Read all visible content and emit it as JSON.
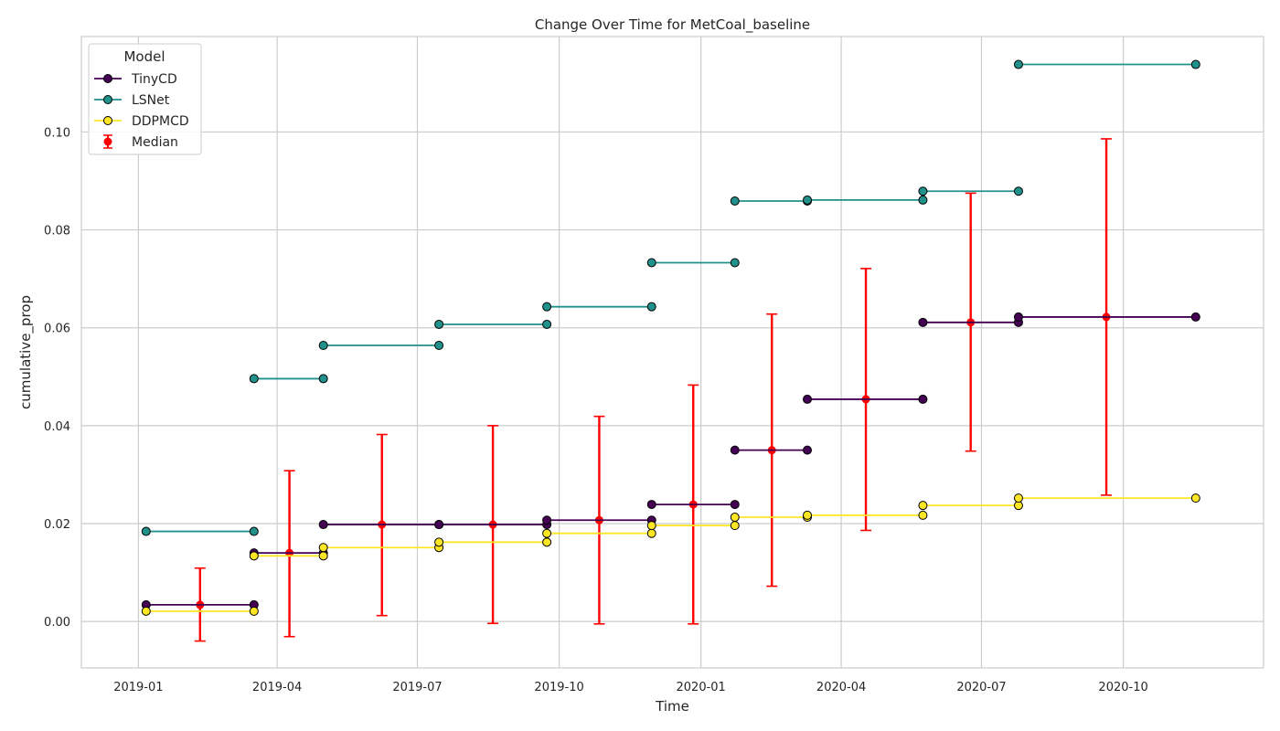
{
  "chart_data": {
    "type": "line",
    "title": "Change Over Time for MetCoal_baseline",
    "xlabel": "Time",
    "ylabel": "cumulative_prop",
    "xlim": [
      "2018-11-25",
      "2020-12-31"
    ],
    "ylim": [
      -0.0095,
      0.1195
    ],
    "x_ticks": [
      "2019-01-01",
      "2019-04-01",
      "2019-07-01",
      "2019-10-01",
      "2020-01-01",
      "2020-04-01",
      "2020-07-01",
      "2020-10-01"
    ],
    "x_tick_labels": [
      "2019-01",
      "2019-04",
      "2019-07",
      "2019-10",
      "2020-01",
      "2020-04",
      "2020-07",
      "2020-10"
    ],
    "y_ticks": [
      0.0,
      0.02,
      0.04,
      0.06,
      0.08,
      0.1
    ],
    "y_tick_labels": [
      "0.00",
      "0.02",
      "0.04",
      "0.06",
      "0.08",
      "0.10"
    ],
    "grid": true,
    "legend": {
      "title": "Model",
      "placement": "top-left"
    },
    "series": [
      {
        "name": "TinyCD",
        "color": "#440154",
        "segments": [
          [
            [
              "2019-01-06",
              0.0034
            ],
            [
              "2019-03-17",
              0.0034
            ]
          ],
          [
            [
              "2019-03-17",
              0.014
            ],
            [
              "2019-05-01",
              0.014
            ]
          ],
          [
            [
              "2019-05-01",
              0.0198
            ],
            [
              "2019-07-15",
              0.0198
            ]
          ],
          [
            [
              "2019-07-15",
              0.0198
            ],
            [
              "2019-09-23",
              0.0198
            ]
          ],
          [
            [
              "2019-09-23",
              0.0207
            ],
            [
              "2019-11-30",
              0.0207
            ]
          ],
          [
            [
              "2019-11-30",
              0.0239
            ],
            [
              "2020-01-23",
              0.0239
            ]
          ],
          [
            [
              "2020-01-23",
              0.035
            ],
            [
              "2020-03-10",
              0.035
            ]
          ],
          [
            [
              "2020-03-10",
              0.0454
            ],
            [
              "2020-05-24",
              0.0454
            ]
          ],
          [
            [
              "2020-05-24",
              0.0611
            ],
            [
              "2020-07-25",
              0.0611
            ]
          ],
          [
            [
              "2020-07-25",
              0.0622
            ],
            [
              "2020-11-17",
              0.0622
            ]
          ]
        ]
      },
      {
        "name": "LSNet",
        "color": "#21918c",
        "segments": [
          [
            [
              "2019-01-06",
              0.0184
            ],
            [
              "2019-03-17",
              0.0184
            ]
          ],
          [
            [
              "2019-03-17",
              0.0496
            ],
            [
              "2019-05-01",
              0.0496
            ]
          ],
          [
            [
              "2019-05-01",
              0.0564
            ],
            [
              "2019-07-15",
              0.0564
            ]
          ],
          [
            [
              "2019-07-15",
              0.0607
            ],
            [
              "2019-09-23",
              0.0607
            ]
          ],
          [
            [
              "2019-09-23",
              0.0643
            ],
            [
              "2019-11-30",
              0.0643
            ]
          ],
          [
            [
              "2019-11-30",
              0.0733
            ],
            [
              "2020-01-23",
              0.0733
            ]
          ],
          [
            [
              "2020-01-23",
              0.0859
            ],
            [
              "2020-03-10",
              0.0859
            ]
          ],
          [
            [
              "2020-03-10",
              0.0861
            ],
            [
              "2020-05-24",
              0.0861
            ]
          ],
          [
            [
              "2020-05-24",
              0.0879
            ],
            [
              "2020-07-25",
              0.0879
            ]
          ],
          [
            [
              "2020-07-25",
              0.1138
            ],
            [
              "2020-11-17",
              0.1138
            ]
          ]
        ]
      },
      {
        "name": "DDPMCD",
        "color": "#fde725",
        "segments": [
          [
            [
              "2019-01-06",
              0.0021
            ],
            [
              "2019-03-17",
              0.0021
            ]
          ],
          [
            [
              "2019-03-17",
              0.0134
            ],
            [
              "2019-05-01",
              0.0134
            ]
          ],
          [
            [
              "2019-05-01",
              0.0151
            ],
            [
              "2019-07-15",
              0.0151
            ]
          ],
          [
            [
              "2019-07-15",
              0.0162
            ],
            [
              "2019-09-23",
              0.0162
            ]
          ],
          [
            [
              "2019-09-23",
              0.018
            ],
            [
              "2019-11-30",
              0.018
            ]
          ],
          [
            [
              "2019-11-30",
              0.0196
            ],
            [
              "2020-01-23",
              0.0196
            ]
          ],
          [
            [
              "2020-01-23",
              0.0213
            ],
            [
              "2020-03-10",
              0.0213
            ]
          ],
          [
            [
              "2020-03-10",
              0.0217
            ],
            [
              "2020-05-24",
              0.0217
            ]
          ],
          [
            [
              "2020-05-24",
              0.0237
            ],
            [
              "2020-07-25",
              0.0237
            ]
          ],
          [
            [
              "2020-07-25",
              0.0252
            ],
            [
              "2020-11-17",
              0.0252
            ]
          ]
        ]
      }
    ],
    "median": {
      "name": "Median",
      "color": "#ff0000",
      "points": [
        {
          "x": "2019-02-10",
          "y": 0.0034,
          "low": -0.004,
          "high": 0.0109
        },
        {
          "x": "2019-04-09",
          "y": 0.014,
          "low": -0.0031,
          "high": 0.0308
        },
        {
          "x": "2019-06-08",
          "y": 0.0198,
          "low": 0.0012,
          "high": 0.0382
        },
        {
          "x": "2019-08-19",
          "y": 0.0198,
          "low": -0.0004,
          "high": 0.04
        },
        {
          "x": "2019-10-27",
          "y": 0.0207,
          "low": -0.0005,
          "high": 0.0419
        },
        {
          "x": "2019-12-27",
          "y": 0.0239,
          "low": -0.0005,
          "high": 0.0483
        },
        {
          "x": "2020-02-16",
          "y": 0.035,
          "low": 0.0072,
          "high": 0.0628
        },
        {
          "x": "2020-04-17",
          "y": 0.0454,
          "low": 0.0186,
          "high": 0.0721
        },
        {
          "x": "2020-06-24",
          "y": 0.0611,
          "low": 0.0348,
          "high": 0.0875
        },
        {
          "x": "2020-09-20",
          "y": 0.0622,
          "low": 0.0258,
          "high": 0.0986
        }
      ]
    }
  }
}
